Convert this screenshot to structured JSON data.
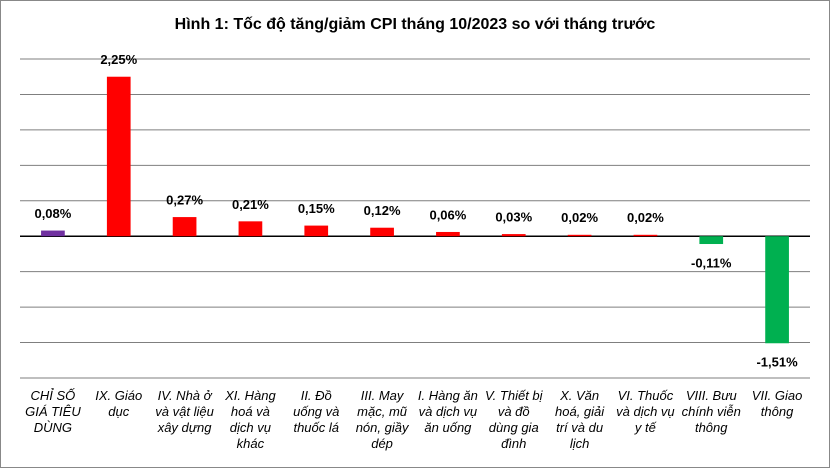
{
  "chart_data": {
    "type": "bar",
    "title": "Hình 1: Tốc độ tăng/giảm CPI tháng 10/2023 so với tháng trước",
    "categories": [
      "CHỈ SỐ GIÁ TIÊU DÙNG",
      "IX. Giáo dục",
      "IV. Nhà ở và vật liệu xây dựng",
      "XI. Hàng hoá và dịch vụ khác",
      "II. Đồ uống và thuốc lá",
      "III. May mặc, mũ nón, giầy dép",
      "I. Hàng ăn và dịch vụ ăn uống",
      "V. Thiết bị và đồ dùng gia đình",
      "X. Văn hoá, giải trí và du lịch",
      "VI. Thuốc và dịch vụ y tế",
      "VIII. Bưu chính viễn thông",
      "VII. Giao thông"
    ],
    "values": [
      0.08,
      2.25,
      0.27,
      0.21,
      0.15,
      0.12,
      0.06,
      0.03,
      0.02,
      0.02,
      -0.11,
      -1.51
    ],
    "value_labels": [
      "0,08%",
      "2,25%",
      "0,27%",
      "0,21%",
      "0,15%",
      "0,12%",
      "0,06%",
      "0,03%",
      "0,02%",
      "0,02%",
      "-0,11%",
      "-1,51%"
    ],
    "colors": [
      "#7030a0",
      "#ff0000",
      "#ff0000",
      "#ff0000",
      "#ff0000",
      "#ff0000",
      "#ff0000",
      "#ff0000",
      "#ff0000",
      "#ff0000",
      "#00b050",
      "#00b050"
    ],
    "ylim": [
      -2,
      2.5
    ],
    "yticks": [
      -2,
      -1.5,
      -1,
      -0.5,
      0,
      0.5,
      1,
      1.5,
      2,
      2.5
    ],
    "grid": true
  }
}
